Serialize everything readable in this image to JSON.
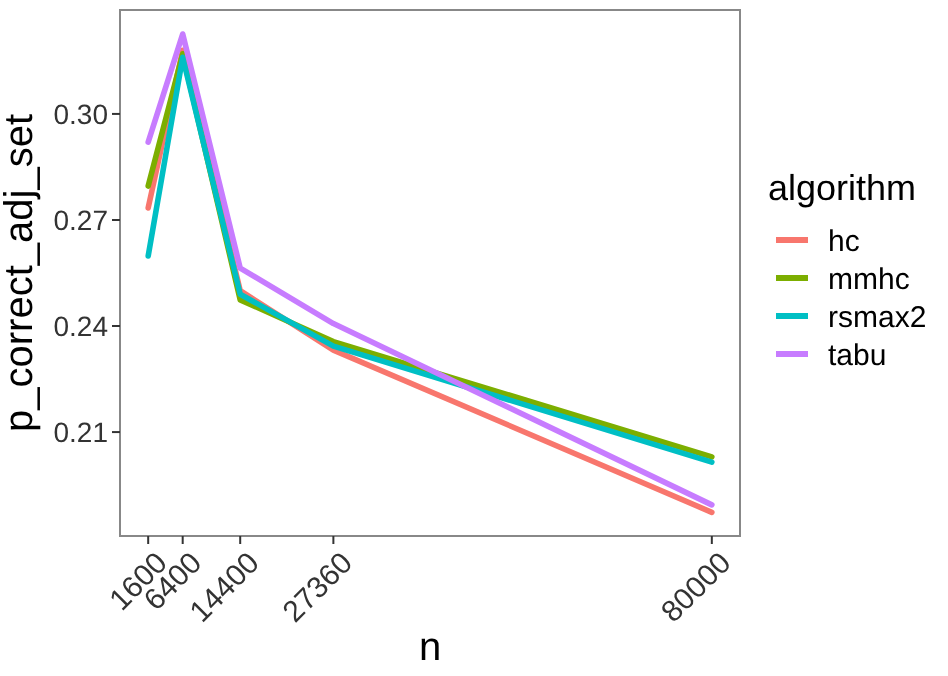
{
  "chart_data": {
    "type": "line",
    "xlabel": "n",
    "ylabel": "p_correct_adj_set",
    "legend_title": "algorithm",
    "legend": "right",
    "x": [
      1600,
      6400,
      14400,
      27360,
      80000
    ],
    "xlim": [
      -2320,
      83920
    ],
    "xticks": [
      1600,
      6400,
      14400,
      27360,
      80000
    ],
    "ylim": [
      0.1806,
      0.3294
    ],
    "yticks": [
      {
        "value": 0.21,
        "label": "0.21"
      },
      {
        "value": 0.24,
        "label": "0.24"
      },
      {
        "value": 0.27,
        "label": "0.27"
      },
      {
        "value": 0.3,
        "label": "0.30"
      }
    ],
    "grid": false,
    "marker": "none",
    "line_style": "solid",
    "series": [
      {
        "name": "hc",
        "color": "#f8766d",
        "values": [
          0.2734,
          0.318,
          0.25,
          0.2332,
          0.1873
        ]
      },
      {
        "name": "mmhc",
        "color": "#7cae00",
        "values": [
          0.2796,
          0.317,
          0.2474,
          0.2356,
          0.203
        ]
      },
      {
        "name": "rsmax2",
        "color": "#00bfc4",
        "values": [
          0.2598,
          0.316,
          0.249,
          0.2343,
          0.2015
        ]
      },
      {
        "name": "tabu",
        "color": "#c77cff",
        "values": [
          0.292,
          0.3226,
          0.2564,
          0.2407,
          0.1894
        ]
      }
    ]
  }
}
